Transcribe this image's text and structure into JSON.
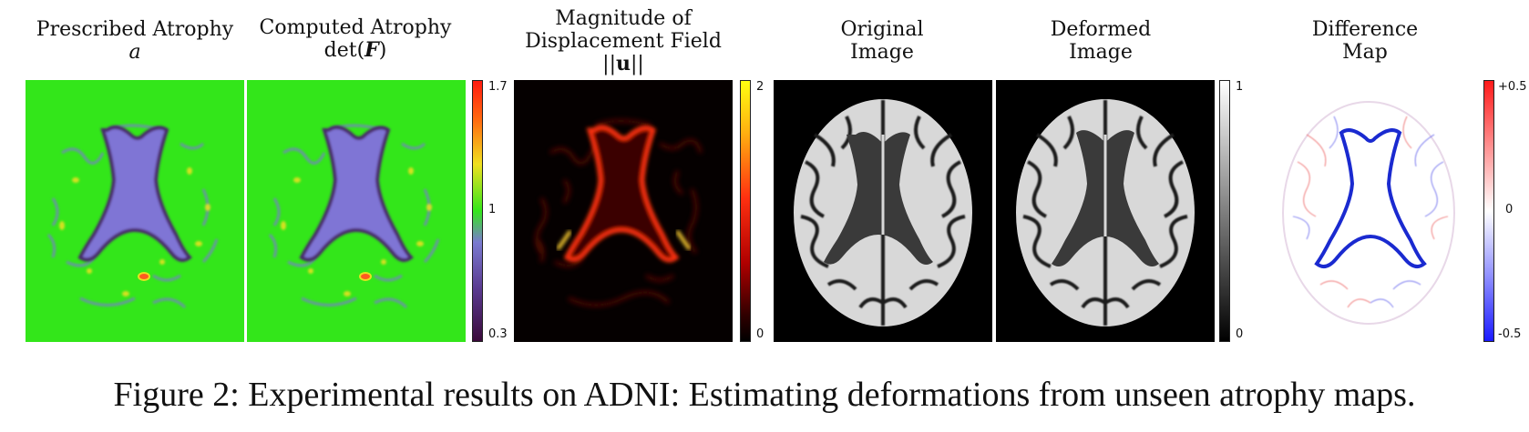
{
  "panels": [
    {
      "title_line1": "Prescribed Atrophy",
      "title_line2": "a"
    },
    {
      "title_line1": "Computed Atrophy",
      "title_line2_prefix": "det(",
      "title_line2_var": "F",
      "title_line2_suffix": ")"
    },
    {
      "title_line1": "Magnitude of",
      "title_line2": "Displacement Field",
      "title_line3_prefix": "||",
      "title_line3_var": "u",
      "title_line3_suffix": "||"
    },
    {
      "title_line1": "Original",
      "title_line2": "Image"
    },
    {
      "title_line1": "Deformed",
      "title_line2": "Image"
    },
    {
      "title_line1": "Difference",
      "title_line2": "Map"
    }
  ],
  "colorbars": {
    "atrophy": {
      "max": "1.7",
      "mid": "1",
      "min": "0.3"
    },
    "displacement": {
      "max": "2",
      "min": "0"
    },
    "intensity": {
      "max": "1",
      "min": "0"
    },
    "difference": {
      "max": "+0.5",
      "mid": "0",
      "min": "-0.5"
    }
  },
  "colors": {
    "atrophy_bg": "#33e61a",
    "displacement_bg": "#050000",
    "intensity_bg": "#000000",
    "difference_bg": "#ffffff"
  },
  "caption": "Figure 2: Experimental results on ADNI: Estimating deformations from unseen atrophy maps."
}
